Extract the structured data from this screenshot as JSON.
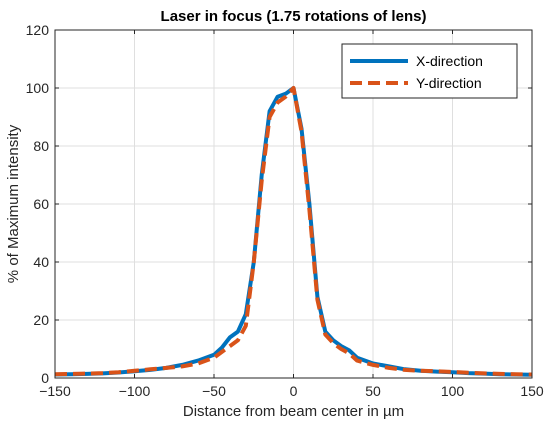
{
  "chart_data": {
    "type": "line",
    "title": "Laser in focus (1.75 rotations of lens)",
    "xlabel": "Distance from beam center in µm",
    "ylabel": "% of Maximum intensity",
    "xlim": [
      -150,
      150
    ],
    "ylim": [
      0,
      120
    ],
    "xticks": [
      -150,
      -100,
      -50,
      0,
      50,
      100,
      150
    ],
    "yticks": [
      0,
      20,
      40,
      60,
      80,
      100,
      120
    ],
    "xtick_labels": [
      "−150",
      "−100",
      "−50",
      "0",
      "50",
      "100",
      "150"
    ],
    "ytick_labels": [
      "0",
      "20",
      "40",
      "60",
      "80",
      "100",
      "120"
    ],
    "grid": true,
    "legend_position": "top-right",
    "series": [
      {
        "name": "X-direction",
        "color": "#0072BD",
        "style": "solid",
        "x": [
          -150,
          -140,
          -130,
          -120,
          -110,
          -100,
          -90,
          -80,
          -70,
          -60,
          -50,
          -45,
          -40,
          -35,
          -30,
          -25,
          -20,
          -15,
          -10,
          -5,
          0,
          5,
          10,
          15,
          20,
          25,
          30,
          35,
          40,
          50,
          60,
          70,
          80,
          90,
          100,
          110,
          120,
          130,
          140,
          150
        ],
        "y": [
          1.2,
          1.3,
          1.4,
          1.6,
          1.9,
          2.3,
          2.8,
          3.5,
          4.5,
          6,
          8,
          10.5,
          14,
          16,
          22,
          40,
          70,
          92,
          97,
          98,
          100,
          86,
          60,
          28,
          16,
          13,
          11,
          9.5,
          7,
          5,
          4,
          3,
          2.5,
          2.2,
          2,
          1.7,
          1.5,
          1.3,
          1.2,
          1.1
        ]
      },
      {
        "name": "Y-direction",
        "color": "#D95319",
        "style": "dashed",
        "x": [
          -150,
          -140,
          -130,
          -120,
          -110,
          -100,
          -90,
          -80,
          -70,
          -60,
          -50,
          -45,
          -40,
          -35,
          -30,
          -25,
          -20,
          -15,
          -10,
          -5,
          0,
          5,
          10,
          15,
          20,
          25,
          30,
          35,
          40,
          50,
          60,
          70,
          80,
          90,
          100,
          110,
          120,
          130,
          140,
          150
        ],
        "y": [
          1.3,
          1.4,
          1.5,
          1.7,
          2,
          2.5,
          3,
          3.5,
          4,
          5,
          7,
          9,
          11,
          13,
          18,
          40,
          68,
          90,
          95,
          97,
          100,
          85,
          58,
          27,
          15,
          12,
          10,
          8.5,
          6,
          4.5,
          3.5,
          2.8,
          2.5,
          2.3,
          2.1,
          1.8,
          1.6,
          1.4,
          1.3,
          1.2
        ]
      }
    ]
  }
}
